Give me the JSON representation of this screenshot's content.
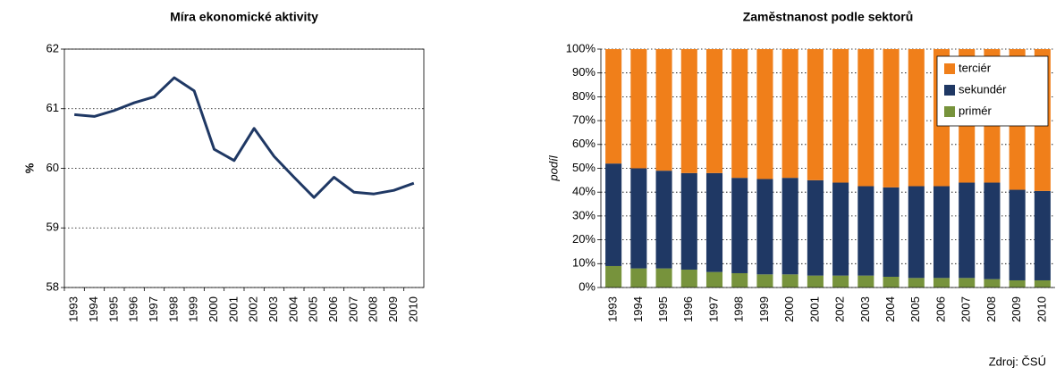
{
  "chart_data": [
    {
      "type": "line",
      "title": "Míra ekonomické aktivity",
      "ylabel": "%",
      "categories": [
        "1993",
        "1994",
        "1995",
        "1996",
        "1997",
        "1998",
        "1999",
        "2000",
        "2001",
        "2002",
        "2003",
        "2004",
        "2005",
        "2006",
        "2007",
        "2008",
        "2009",
        "2010"
      ],
      "values": [
        60.9,
        60.87,
        60.97,
        61.1,
        61.2,
        61.52,
        61.3,
        60.32,
        60.13,
        60.67,
        60.2,
        59.85,
        59.51,
        59.85,
        59.6,
        59.57,
        59.63,
        59.75
      ],
      "color": "#1f3864",
      "ylim": [
        58,
        62
      ],
      "yticks": [
        58,
        59,
        60,
        61,
        62
      ],
      "grid": true
    },
    {
      "type": "stacked_bar",
      "title": "Zaměstnanost podle sektorů",
      "ylabel": "podíl",
      "categories": [
        "1993",
        "1994",
        "1995",
        "1996",
        "1997",
        "1998",
        "1999",
        "2000",
        "2001",
        "2002",
        "2003",
        "2004",
        "2005",
        "2006",
        "2007",
        "2008",
        "2009",
        "2010"
      ],
      "series": [
        {
          "name": "primér",
          "color": "#77933c",
          "values": [
            9,
            8,
            8,
            7.5,
            6.5,
            6,
            5.5,
            5.5,
            5,
            5,
            5,
            4.5,
            4,
            4,
            4,
            3.5,
            3,
            3
          ]
        },
        {
          "name": "sekundér",
          "color": "#1f3864",
          "values": [
            43,
            42,
            41,
            40.5,
            41.5,
            40,
            40,
            40.5,
            40,
            39,
            37.5,
            37.5,
            38.5,
            38.5,
            40,
            40.5,
            38,
            37.5
          ]
        },
        {
          "name": "terciér",
          "color": "#f07f1a",
          "values": [
            48,
            50,
            51,
            52,
            52,
            54,
            54.5,
            54,
            55,
            56,
            57.5,
            58,
            57.5,
            57.5,
            56,
            56,
            59,
            59.5
          ]
        }
      ],
      "ylim": [
        0,
        100
      ],
      "yticks": [
        {
          "value": 0,
          "label": "0%"
        },
        {
          "value": 10,
          "label": "10%"
        },
        {
          "value": 20,
          "label": "20%"
        },
        {
          "value": 30,
          "label": "30%"
        },
        {
          "value": 40,
          "label": "40%"
        },
        {
          "value": 50,
          "label": "50%"
        },
        {
          "value": 60,
          "label": "60%"
        },
        {
          "value": 70,
          "label": "70%"
        },
        {
          "value": 80,
          "label": "80%"
        },
        {
          "value": 90,
          "label": "90%"
        },
        {
          "value": 100,
          "label": "100%"
        }
      ],
      "grid": true,
      "legend": "top-right"
    }
  ],
  "source": "Zdroj: ČSÚ"
}
